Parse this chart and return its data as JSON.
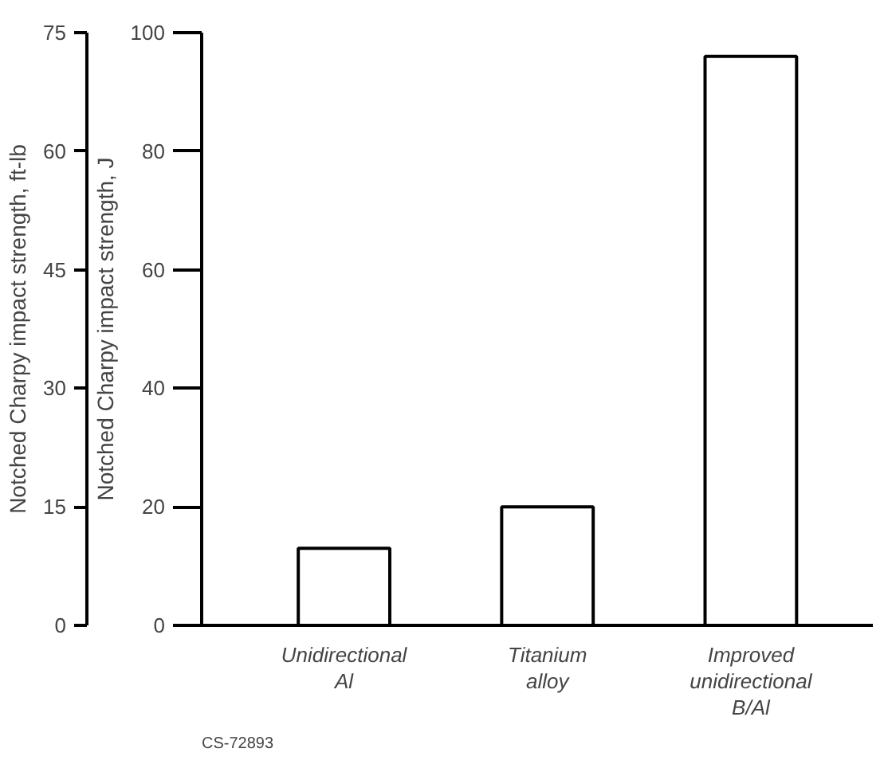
{
  "chart_data": {
    "type": "bar",
    "categories": [
      "Unidirectional\nAl",
      "Titanium\nalloy",
      "Improved\nunidirectional\nB/Al"
    ],
    "series": [
      {
        "color": "#ffffff",
        "values": [
          13,
          20,
          96
        ]
      }
    ],
    "ylabel": "Notched Charpy impact strength, J",
    "ylim": [
      0,
      100
    ],
    "yticks": [
      0,
      20,
      40,
      60,
      80,
      100
    ],
    "y2label": "Notched Charpy impact strength, ft-lb",
    "y2lim": [
      0,
      75
    ],
    "y2ticks": [
      0,
      15,
      30,
      45,
      60,
      75
    ],
    "annotations": [
      "CS-72893"
    ],
    "grid": false
  }
}
